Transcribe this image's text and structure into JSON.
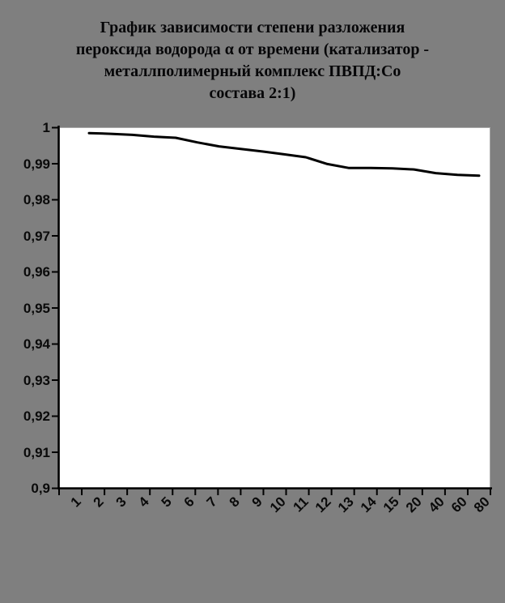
{
  "chart_data": {
    "type": "line",
    "title": "График зависимости степени разложения пероксида водорода α от времени (катализатор - металлполимерный комплекс ПВПД:Co состава 2:1)",
    "title_lines": [
      "График зависимости степени разложения",
      "пероксида водорода α от времени (катализатор -",
      "металлполимерный комплекс ПВПД:Co",
      "состава 2:1)"
    ],
    "categories": [
      "1",
      "2",
      "3",
      "4",
      "5",
      "6",
      "7",
      "8",
      "9",
      "10",
      "11",
      "12",
      "13",
      "14",
      "15",
      "20",
      "40",
      "60",
      "80"
    ],
    "series": [
      {
        "name": "alpha-vs-time",
        "values": [
          0.9985,
          0.9983,
          0.998,
          0.9975,
          0.9972,
          0.9959,
          0.9948,
          0.9941,
          0.9934,
          0.9926,
          0.9918,
          0.9899,
          0.9888,
          0.9888,
          0.9887,
          0.9884,
          0.9874,
          0.9869,
          0.9867
        ]
      }
    ],
    "xlabel": "",
    "ylabel": "",
    "ylim": [
      0.9,
      1.0
    ],
    "y_tick_step": 0.01,
    "y_tick_labels": [
      "1",
      "0,99",
      "0,98",
      "0,97",
      "0,96",
      "0,95",
      "0,94",
      "0,93",
      "0,92",
      "0,91",
      "0,9"
    ],
    "grid": false,
    "legend_visible": false,
    "colors": {
      "line": "#000000",
      "axis": "#000000",
      "canvas_background": "#7f7f7f",
      "plot_background": "#ffffff",
      "plot_border": "#a8a8a8",
      "text": "#0a0a0a"
    }
  }
}
